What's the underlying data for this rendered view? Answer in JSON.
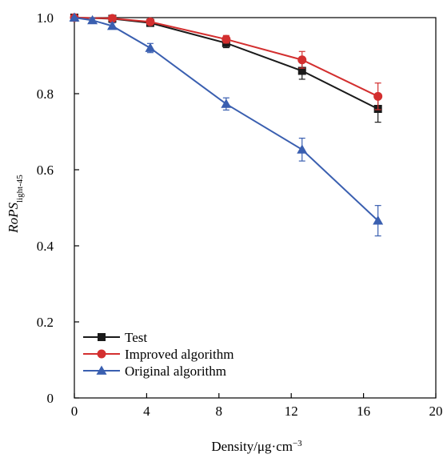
{
  "chart_data": {
    "type": "line",
    "xlabel": {
      "text": "Density/μg·cm",
      "superscript": "−3"
    },
    "ylabel": {
      "italic": "RoPS",
      "subscript": "light-45"
    },
    "xlim": [
      0,
      20
    ],
    "ylim": [
      0,
      1.0
    ],
    "x_ticks": [
      0,
      4,
      8,
      12,
      16,
      20
    ],
    "x_tick_labels": [
      "0",
      "4",
      "8",
      "12",
      "16",
      "20"
    ],
    "y_ticks": [
      0,
      0.2,
      0.4,
      0.6,
      0.8,
      1.0
    ],
    "y_tick_labels": [
      "0",
      "0.2",
      "0.4",
      "0.6",
      "0.8",
      "1.0"
    ],
    "grid": false,
    "legend_position": "bottom-left",
    "series": [
      {
        "name": "Test",
        "color": "#1a1a1a",
        "marker": "square",
        "points": [
          {
            "x": 0,
            "y": 1.0,
            "err": 0
          },
          {
            "x": 2.1,
            "y": 0.997,
            "err": 0.005
          },
          {
            "x": 4.2,
            "y": 0.986,
            "err": 0.008
          },
          {
            "x": 8.4,
            "y": 0.933,
            "err": 0.012
          },
          {
            "x": 12.6,
            "y": 0.86,
            "err": 0.022
          },
          {
            "x": 16.8,
            "y": 0.76,
            "err": 0.035
          }
        ]
      },
      {
        "name": "Improved algorithm",
        "color": "#d32f2f",
        "marker": "circle",
        "points": [
          {
            "x": 0,
            "y": 1.0,
            "err": 0
          },
          {
            "x": 2.1,
            "y": 0.998,
            "err": 0.004
          },
          {
            "x": 4.2,
            "y": 0.989,
            "err": 0.007
          },
          {
            "x": 8.4,
            "y": 0.943,
            "err": 0.01
          },
          {
            "x": 12.6,
            "y": 0.889,
            "err": 0.022
          },
          {
            "x": 16.8,
            "y": 0.793,
            "err": 0.035
          }
        ]
      },
      {
        "name": "Original algorithm",
        "color": "#3a5fb0",
        "marker": "triangle",
        "points": [
          {
            "x": 0,
            "y": 1.0,
            "err": 0
          },
          {
            "x": 1.0,
            "y": 0.993,
            "err": 0.006
          },
          {
            "x": 2.1,
            "y": 0.978,
            "err": 0.008
          },
          {
            "x": 4.2,
            "y": 0.92,
            "err": 0.012
          },
          {
            "x": 8.4,
            "y": 0.773,
            "err": 0.016
          },
          {
            "x": 12.6,
            "y": 0.653,
            "err": 0.03
          },
          {
            "x": 16.8,
            "y": 0.466,
            "err": 0.04
          }
        ]
      }
    ]
  }
}
